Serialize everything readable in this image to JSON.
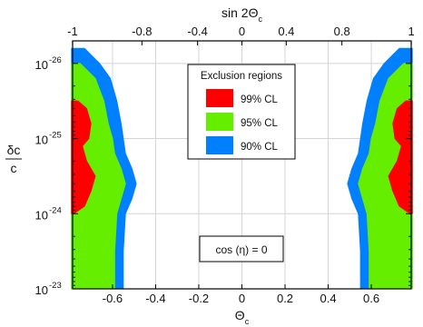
{
  "chart_data": {
    "type": "area",
    "title": "",
    "xlabel": "Θc",
    "x2label": "sin 2Θc",
    "ylabel_numerator": "δc",
    "ylabel_denominator": "c",
    "xlim": [
      -0.785,
      0.785
    ],
    "ylim_log10": [
      -23,
      -26.3
    ],
    "grid": true,
    "x_ticks": [
      "-0.6",
      "-0.4",
      "-0.2",
      "0",
      "0.2",
      "0.4",
      "0.6"
    ],
    "x2_ticks": [
      "-1",
      "-0.8",
      "-0.4",
      "0",
      "0.4",
      "0.8",
      "1"
    ],
    "y_ticks": [
      {
        "base": "10",
        "exp": "-26"
      },
      {
        "base": "10",
        "exp": "-25"
      },
      {
        "base": "10",
        "exp": "-24"
      },
      {
        "base": "10",
        "exp": "-23"
      }
    ],
    "legend": {
      "title": "Exclusion regions",
      "placement": "top-center",
      "entries": [
        {
          "label": "99% CL",
          "color": "#ff0000"
        },
        {
          "label": "95% CL",
          "color": "#66ee00"
        },
        {
          "label": "90% CL",
          "color": "#0080ff"
        }
      ]
    },
    "annotation": "cos (η) = 0",
    "series": [
      {
        "color": "#0080ff",
        "boundary_abs_theta_vs_log10_dc": [
          [
            -26.2,
            0.73
          ],
          [
            -26.0,
            0.66
          ],
          [
            -25.8,
            0.61
          ],
          [
            -25.5,
            0.58
          ],
          [
            -25.2,
            0.56
          ],
          [
            -25.0,
            0.55
          ],
          [
            -24.8,
            0.54
          ],
          [
            -24.6,
            0.51
          ],
          [
            -24.4,
            0.49
          ],
          [
            -24.2,
            0.51
          ],
          [
            -24.0,
            0.54
          ],
          [
            -23.5,
            0.55
          ],
          [
            -23.0,
            0.55
          ]
        ]
      },
      {
        "color": "#66ee00",
        "boundary_abs_theta_vs_log10_dc": [
          [
            -26.0,
            0.75
          ],
          [
            -25.8,
            0.68
          ],
          [
            -25.5,
            0.64
          ],
          [
            -25.2,
            0.62
          ],
          [
            -25.0,
            0.6
          ],
          [
            -24.8,
            0.59
          ],
          [
            -24.6,
            0.56
          ],
          [
            -24.4,
            0.54
          ],
          [
            -24.2,
            0.56
          ],
          [
            -24.0,
            0.58
          ],
          [
            -23.5,
            0.59
          ],
          [
            -23.0,
            0.59
          ]
        ]
      },
      {
        "color": "#ff0000",
        "boundary_abs_theta_vs_log10_dc": [
          [
            -25.5,
            0.76
          ],
          [
            -25.4,
            0.72
          ],
          [
            -25.2,
            0.7
          ],
          [
            -25.0,
            0.71
          ],
          [
            -24.9,
            0.74
          ],
          [
            -24.7,
            0.72
          ],
          [
            -24.5,
            0.68
          ],
          [
            -24.3,
            0.7
          ],
          [
            -24.1,
            0.73
          ],
          [
            -24.0,
            0.78
          ]
        ]
      }
    ]
  }
}
